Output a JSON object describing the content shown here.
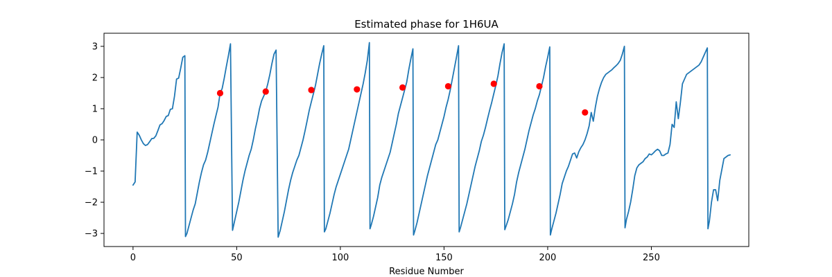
{
  "chart_data": {
    "type": "line",
    "title": "Estimated phase for 1H6UA",
    "xlabel": "Residue Number",
    "ylabel": "",
    "xlim": [
      -14,
      297
    ],
    "ylim": [
      -3.42,
      3.42
    ],
    "xticks": [
      0,
      50,
      100,
      150,
      200,
      250
    ],
    "yticks": [
      -3,
      -2,
      -1,
      0,
      1,
      2,
      3
    ],
    "grid": false,
    "colors": {
      "line": "#1f77b4",
      "markers": "#ff0000"
    },
    "series": [
      {
        "kind": "line",
        "points": [
          [
            0,
            -1.45
          ],
          [
            1,
            -1.35
          ],
          [
            2,
            0.25
          ],
          [
            3,
            0.15
          ],
          [
            4,
            0.0
          ],
          [
            5,
            -0.12
          ],
          [
            6,
            -0.18
          ],
          [
            7,
            -0.15
          ],
          [
            8,
            -0.06
          ],
          [
            9,
            0.04
          ],
          [
            10,
            0.05
          ],
          [
            11,
            0.13
          ],
          [
            12,
            0.3
          ],
          [
            13,
            0.48
          ],
          [
            14,
            0.52
          ],
          [
            15,
            0.62
          ],
          [
            16,
            0.75
          ],
          [
            17,
            0.78
          ],
          [
            18,
            0.98
          ],
          [
            19,
            1.0
          ],
          [
            20,
            1.4
          ],
          [
            21,
            1.95
          ],
          [
            22,
            1.98
          ],
          [
            23,
            2.3
          ],
          [
            24,
            2.65
          ],
          [
            25,
            2.7
          ],
          [
            25.3,
            -3.1
          ],
          [
            26,
            -3.0
          ],
          [
            27,
            -2.75
          ],
          [
            28,
            -2.5
          ],
          [
            29,
            -2.25
          ],
          [
            30,
            -2.05
          ],
          [
            31,
            -1.7
          ],
          [
            32,
            -1.35
          ],
          [
            33,
            -1.05
          ],
          [
            34,
            -0.8
          ],
          [
            35,
            -0.65
          ],
          [
            36,
            -0.4
          ],
          [
            37,
            -0.1
          ],
          [
            38,
            0.2
          ],
          [
            39,
            0.5
          ],
          [
            40,
            0.78
          ],
          [
            41,
            1.05
          ],
          [
            42,
            1.5
          ],
          [
            43,
            1.65
          ],
          [
            44,
            1.98
          ],
          [
            45,
            2.35
          ],
          [
            46,
            2.7
          ],
          [
            47,
            3.08
          ],
          [
            48,
            -2.9
          ],
          [
            49,
            -2.6
          ],
          [
            50,
            -2.3
          ],
          [
            51,
            -2.0
          ],
          [
            52,
            -1.65
          ],
          [
            53,
            -1.3
          ],
          [
            54,
            -1.0
          ],
          [
            55,
            -0.75
          ],
          [
            56,
            -0.5
          ],
          [
            57,
            -0.3
          ],
          [
            58,
            0.0
          ],
          [
            59,
            0.35
          ],
          [
            60,
            0.65
          ],
          [
            61,
            1.0
          ],
          [
            62,
            1.25
          ],
          [
            63,
            1.4
          ],
          [
            64,
            1.55
          ],
          [
            65,
            1.8
          ],
          [
            66,
            2.1
          ],
          [
            67,
            2.45
          ],
          [
            68,
            2.75
          ],
          [
            69,
            2.88
          ],
          [
            70,
            -3.12
          ],
          [
            71,
            -2.9
          ],
          [
            72,
            -2.6
          ],
          [
            73,
            -2.3
          ],
          [
            74,
            -1.95
          ],
          [
            75,
            -1.6
          ],
          [
            76,
            -1.3
          ],
          [
            77,
            -1.05
          ],
          [
            78,
            -0.85
          ],
          [
            79,
            -0.65
          ],
          [
            80,
            -0.5
          ],
          [
            81,
            -0.25
          ],
          [
            82,
            0.0
          ],
          [
            83,
            0.3
          ],
          [
            84,
            0.62
          ],
          [
            85,
            0.95
          ],
          [
            86,
            1.22
          ],
          [
            87,
            1.48
          ],
          [
            88,
            1.75
          ],
          [
            89,
            2.1
          ],
          [
            90,
            2.45
          ],
          [
            91,
            2.75
          ],
          [
            92,
            3.02
          ],
          [
            92.3,
            -2.95
          ],
          [
            93,
            -2.85
          ],
          [
            94,
            -2.6
          ],
          [
            95,
            -2.35
          ],
          [
            96,
            -2.05
          ],
          [
            97,
            -1.75
          ],
          [
            98,
            -1.5
          ],
          [
            99,
            -1.3
          ],
          [
            100,
            -1.1
          ],
          [
            101,
            -0.9
          ],
          [
            102,
            -0.7
          ],
          [
            103,
            -0.5
          ],
          [
            104,
            -0.3
          ],
          [
            105,
            0.0
          ],
          [
            106,
            0.3
          ],
          [
            107,
            0.6
          ],
          [
            108,
            0.9
          ],
          [
            109,
            1.2
          ],
          [
            110,
            1.5
          ],
          [
            111,
            1.8
          ],
          [
            112,
            2.15
          ],
          [
            113,
            2.55
          ],
          [
            114,
            3.12
          ],
          [
            114.3,
            -2.85
          ],
          [
            115,
            -2.7
          ],
          [
            116,
            -2.45
          ],
          [
            117,
            -2.15
          ],
          [
            118,
            -1.85
          ],
          [
            119,
            -1.45
          ],
          [
            120,
            -1.2
          ],
          [
            121,
            -1.0
          ],
          [
            122,
            -0.8
          ],
          [
            123,
            -0.6
          ],
          [
            124,
            -0.4
          ],
          [
            125,
            -0.1
          ],
          [
            126,
            0.2
          ],
          [
            127,
            0.5
          ],
          [
            128,
            0.85
          ],
          [
            129,
            1.1
          ],
          [
            130,
            1.35
          ],
          [
            131,
            1.6
          ],
          [
            132,
            1.85
          ],
          [
            133,
            2.25
          ],
          [
            134,
            2.6
          ],
          [
            135,
            2.92
          ],
          [
            135.3,
            -3.05
          ],
          [
            136,
            -2.9
          ],
          [
            137,
            -2.65
          ],
          [
            138,
            -2.35
          ],
          [
            139,
            -2.05
          ],
          [
            140,
            -1.75
          ],
          [
            141,
            -1.45
          ],
          [
            142,
            -1.15
          ],
          [
            143,
            -0.9
          ],
          [
            144,
            -0.65
          ],
          [
            145,
            -0.4
          ],
          [
            146,
            -0.15
          ],
          [
            147,
            0.0
          ],
          [
            148,
            0.25
          ],
          [
            149,
            0.5
          ],
          [
            150,
            0.75
          ],
          [
            151,
            1.05
          ],
          [
            152,
            1.3
          ],
          [
            153,
            1.6
          ],
          [
            154,
            1.95
          ],
          [
            155,
            2.3
          ],
          [
            156,
            2.65
          ],
          [
            157,
            3.02
          ],
          [
            157.3,
            -2.95
          ],
          [
            158,
            -2.8
          ],
          [
            159,
            -2.55
          ],
          [
            160,
            -2.3
          ],
          [
            161,
            -2.05
          ],
          [
            162,
            -1.75
          ],
          [
            163,
            -1.45
          ],
          [
            164,
            -1.15
          ],
          [
            165,
            -0.85
          ],
          [
            166,
            -0.6
          ],
          [
            167,
            -0.35
          ],
          [
            168,
            -0.05
          ],
          [
            169,
            0.15
          ],
          [
            170,
            0.4
          ],
          [
            171,
            0.68
          ],
          [
            172,
            0.95
          ],
          [
            173,
            1.2
          ],
          [
            174,
            1.48
          ],
          [
            175,
            1.75
          ],
          [
            176,
            2.05
          ],
          [
            177,
            2.45
          ],
          [
            178,
            2.8
          ],
          [
            179,
            3.08
          ],
          [
            179.3,
            -2.88
          ],
          [
            180,
            -2.75
          ],
          [
            181,
            -2.55
          ],
          [
            182,
            -2.3
          ],
          [
            183,
            -2.05
          ],
          [
            184,
            -1.75
          ],
          [
            185,
            -1.35
          ],
          [
            186,
            -1.05
          ],
          [
            187,
            -0.8
          ],
          [
            188,
            -0.55
          ],
          [
            189,
            -0.3
          ],
          [
            190,
            0.0
          ],
          [
            191,
            0.3
          ],
          [
            192,
            0.55
          ],
          [
            193,
            0.8
          ],
          [
            194,
            1.0
          ],
          [
            195,
            1.25
          ],
          [
            196,
            1.45
          ],
          [
            197,
            1.72
          ],
          [
            198,
            2.0
          ],
          [
            199,
            2.35
          ],
          [
            200,
            2.65
          ],
          [
            201,
            2.98
          ],
          [
            201.3,
            -3.05
          ],
          [
            202,
            -2.85
          ],
          [
            203,
            -2.6
          ],
          [
            204,
            -2.35
          ],
          [
            205,
            -2.05
          ],
          [
            206,
            -1.75
          ],
          [
            207,
            -1.4
          ],
          [
            208,
            -1.2
          ],
          [
            209,
            -1.0
          ],
          [
            210,
            -0.85
          ],
          [
            211,
            -0.65
          ],
          [
            212,
            -0.45
          ],
          [
            213,
            -0.42
          ],
          [
            214,
            -0.58
          ],
          [
            215,
            -0.38
          ],
          [
            216,
            -0.25
          ],
          [
            217,
            -0.15
          ],
          [
            218,
            0.0
          ],
          [
            219,
            0.2
          ],
          [
            220,
            0.45
          ],
          [
            221,
            0.88
          ],
          [
            222,
            0.6
          ],
          [
            223,
            1.05
          ],
          [
            224,
            1.4
          ],
          [
            225,
            1.65
          ],
          [
            226,
            1.85
          ],
          [
            227,
            2.0
          ],
          [
            228,
            2.1
          ],
          [
            229,
            2.15
          ],
          [
            230,
            2.2
          ],
          [
            231,
            2.25
          ],
          [
            232,
            2.32
          ],
          [
            233,
            2.38
          ],
          [
            234,
            2.45
          ],
          [
            235,
            2.55
          ],
          [
            236,
            2.75
          ],
          [
            237,
            3.0
          ],
          [
            237.3,
            -2.82
          ],
          [
            238,
            -2.55
          ],
          [
            239,
            -2.3
          ],
          [
            240,
            -2.0
          ],
          [
            241,
            -1.6
          ],
          [
            242,
            -1.15
          ],
          [
            243,
            -0.9
          ],
          [
            244,
            -0.8
          ],
          [
            245,
            -0.75
          ],
          [
            246,
            -0.7
          ],
          [
            247,
            -0.6
          ],
          [
            248,
            -0.55
          ],
          [
            249,
            -0.45
          ],
          [
            250,
            -0.48
          ],
          [
            251,
            -0.42
          ],
          [
            252,
            -0.35
          ],
          [
            253,
            -0.3
          ],
          [
            254,
            -0.35
          ],
          [
            255,
            -0.5
          ],
          [
            256,
            -0.5
          ],
          [
            257,
            -0.45
          ],
          [
            258,
            -0.42
          ],
          [
            259,
            -0.15
          ],
          [
            260,
            0.5
          ],
          [
            261,
            0.4
          ],
          [
            262,
            1.22
          ],
          [
            263,
            0.68
          ],
          [
            264,
            1.2
          ],
          [
            265,
            1.8
          ],
          [
            266,
            1.95
          ],
          [
            267,
            2.1
          ],
          [
            268,
            2.15
          ],
          [
            269,
            2.2
          ],
          [
            270,
            2.25
          ],
          [
            271,
            2.3
          ],
          [
            272,
            2.35
          ],
          [
            273,
            2.4
          ],
          [
            274,
            2.5
          ],
          [
            275,
            2.65
          ],
          [
            276,
            2.8
          ],
          [
            277,
            2.95
          ],
          [
            277.3,
            -2.85
          ],
          [
            278,
            -2.6
          ],
          [
            279,
            -2.0
          ],
          [
            280,
            -1.6
          ],
          [
            281,
            -1.6
          ],
          [
            282,
            -1.95
          ],
          [
            283,
            -1.3
          ],
          [
            284,
            -0.95
          ],
          [
            285,
            -0.6
          ],
          [
            286,
            -0.55
          ],
          [
            287,
            -0.5
          ],
          [
            288,
            -0.48
          ]
        ]
      },
      {
        "kind": "markers",
        "points": [
          [
            42,
            1.5
          ],
          [
            64,
            1.55
          ],
          [
            86,
            1.6
          ],
          [
            108,
            1.62
          ],
          [
            130,
            1.68
          ],
          [
            152,
            1.72
          ],
          [
            174,
            1.8
          ],
          [
            196,
            1.72
          ],
          [
            218,
            0.88
          ]
        ]
      }
    ]
  }
}
